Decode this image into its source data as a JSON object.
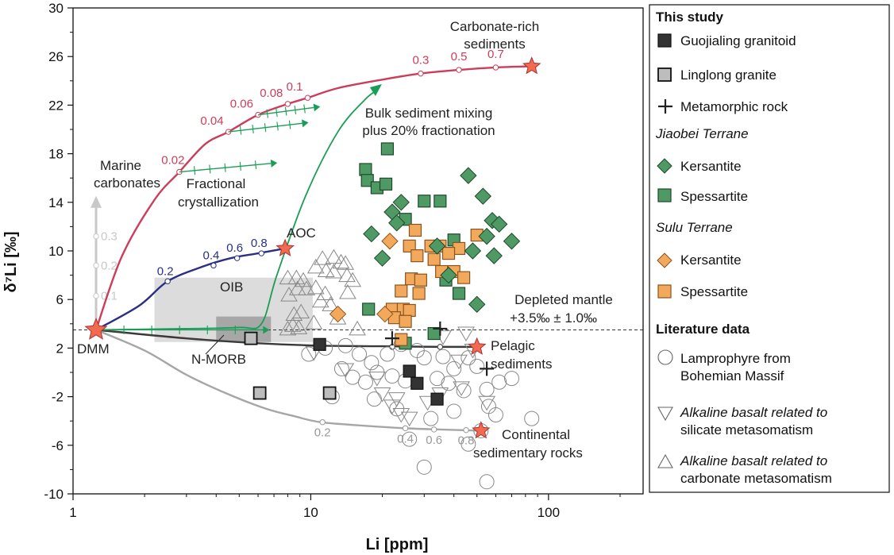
{
  "chart_data": {
    "type": "scatter",
    "x_scale": "log",
    "xlim": [
      1,
      250
    ],
    "ylim": [
      -10,
      30
    ],
    "xlabel": "Li [ppm]",
    "ylabel": "δ⁷Li [‰]",
    "x_ticks": [
      "1",
      "10",
      "100"
    ],
    "y_ticks": [
      "30",
      "26",
      "22",
      "18",
      "14",
      "10",
      "6",
      "2",
      "-2",
      "-6",
      "-10"
    ],
    "colors": {
      "guojialing": "#333333",
      "linglong": "#bdbdbd",
      "green": "#4f9a64",
      "orange": "#f3a95b",
      "lit": "#888888",
      "carb": "#cc3d5b",
      "aoc": "#2a2f83",
      "pel": "#3a3a3a",
      "cont": "#a6a6a6",
      "mix": "#1a9e55",
      "star": "#f26a4f"
    },
    "series": [
      {
        "name": "Guojialing granitoid",
        "marker": "square",
        "points": [
          [
            10.9,
            2.3
          ],
          [
            26,
            0.1
          ],
          [
            28,
            -0.9
          ],
          [
            34,
            -2.2
          ]
        ]
      },
      {
        "name": "Linglong granite",
        "marker": "square",
        "points": [
          [
            5.6,
            2.8
          ],
          [
            6.1,
            -1.7
          ],
          [
            12,
            -1.7
          ]
        ]
      },
      {
        "name": "Metamorphic rock",
        "marker": "plus",
        "points": [
          [
            22,
            2.8
          ],
          [
            35,
            3.6
          ],
          [
            55,
            0.3
          ]
        ]
      },
      {
        "name": "Jiaobei Terrane Kersantite",
        "marker": "diamond",
        "points": [
          [
            46,
            16.2
          ],
          [
            53,
            14.5
          ],
          [
            24,
            14
          ],
          [
            22,
            13.2
          ],
          [
            23,
            12.3
          ],
          [
            58,
            12.5
          ],
          [
            62,
            12.2
          ],
          [
            18,
            11.4
          ],
          [
            70,
            10.8
          ],
          [
            55,
            11.2
          ],
          [
            34,
            10.4
          ],
          [
            48,
            10
          ],
          [
            59,
            9.6
          ],
          [
            20,
            9.4
          ],
          [
            38,
            8
          ],
          [
            50,
            5.6
          ]
        ]
      },
      {
        "name": "Jiaobei Terrane Spessartite",
        "marker": "square",
        "points": [
          [
            21,
            18.4
          ],
          [
            17,
            16.7
          ],
          [
            17.3,
            15.8
          ],
          [
            19,
            15.2
          ],
          [
            20.7,
            15.5
          ],
          [
            30,
            14.1
          ],
          [
            35,
            14.1
          ],
          [
            25,
            12.6
          ],
          [
            40,
            10.9
          ],
          [
            37,
            7.6
          ],
          [
            42,
            6.5
          ],
          [
            17.5,
            5.2
          ],
          [
            33,
            3.2
          ],
          [
            25,
            2.4
          ]
        ]
      },
      {
        "name": "Sulu Terrane Kersantite",
        "marker": "diamond",
        "points": [
          [
            21.5,
            10.8
          ],
          [
            13,
            4.8
          ],
          [
            20.5,
            4.8
          ]
        ]
      },
      {
        "name": "Sulu Terrane Spessartite",
        "marker": "square",
        "points": [
          [
            27.5,
            11.7
          ],
          [
            26,
            10.4
          ],
          [
            32,
            10.4
          ],
          [
            42,
            10.2
          ],
          [
            50,
            11.3
          ],
          [
            28,
            9.6
          ],
          [
            35,
            10.4
          ],
          [
            33,
            9.3
          ],
          [
            38,
            9.8
          ],
          [
            26.5,
            7.7
          ],
          [
            29,
            7.6
          ],
          [
            35.5,
            8.3
          ],
          [
            40,
            8.3
          ],
          [
            44,
            7.8
          ],
          [
            24,
            6.7
          ],
          [
            28.5,
            6.5
          ],
          [
            22,
            5.2
          ],
          [
            24.5,
            5.2
          ],
          [
            26,
            5.1
          ],
          [
            22.5,
            4.5
          ],
          [
            25,
            4.2
          ],
          [
            24,
            2.7
          ]
        ]
      },
      {
        "name": "Lamprophyre from Bohemian Massif",
        "marker": "circle",
        "points": [
          [
            9.8,
            1.5
          ],
          [
            11.5,
            2
          ],
          [
            14,
            2.2
          ],
          [
            16,
            1.5
          ],
          [
            18,
            0.8
          ],
          [
            21,
            1.5
          ],
          [
            24,
            2.3
          ],
          [
            28,
            1.8
          ],
          [
            30,
            1.2
          ],
          [
            36,
            1.3
          ],
          [
            40,
            0.3
          ],
          [
            46,
            1.2
          ],
          [
            50,
            0.5
          ],
          [
            13.5,
            0.3
          ],
          [
            15,
            -0.4
          ],
          [
            17,
            -0.8
          ],
          [
            19,
            0
          ],
          [
            22,
            -0.3
          ],
          [
            25,
            -0.7
          ],
          [
            34,
            -0.5
          ],
          [
            38,
            -0.9
          ],
          [
            44,
            -1.5
          ],
          [
            55,
            -1.4
          ],
          [
            62,
            -0.8
          ],
          [
            70,
            -0.5
          ],
          [
            12.3,
            -2
          ],
          [
            18.5,
            -2.2
          ],
          [
            23,
            -3
          ],
          [
            32,
            -3.8
          ],
          [
            40,
            -3.2
          ],
          [
            56,
            -2.8
          ],
          [
            60,
            -3.5
          ],
          [
            85,
            -3.8
          ],
          [
            26,
            -5.5
          ],
          [
            30,
            -7.8
          ],
          [
            55,
            -9
          ],
          [
            46,
            -5.9
          ],
          [
            52,
            -4.8
          ]
        ]
      },
      {
        "name": "Alkaline basalt related to silicate metasomatism",
        "marker": "triangle-down",
        "points": [
          [
            10.3,
            1.6
          ],
          [
            14,
            0.2
          ],
          [
            19,
            -0.5
          ],
          [
            20,
            -1.8
          ],
          [
            23,
            -2.2
          ],
          [
            22,
            -2.8
          ],
          [
            24,
            -3.5
          ],
          [
            26,
            -3.8
          ],
          [
            31,
            -2.5
          ],
          [
            35,
            -1.8
          ],
          [
            43,
            -1.3
          ],
          [
            55,
            -2.5
          ],
          [
            36,
            2.9
          ],
          [
            45,
            3.2
          ],
          [
            48,
            1.8
          ],
          [
            42,
            0.9
          ]
        ]
      },
      {
        "name": "Alkaline basalt related to carbonate metasomatism",
        "marker": "triangle-up",
        "points": [
          [
            8,
            3.6
          ],
          [
            8.4,
            3.9
          ],
          [
            8.9,
            3.7
          ],
          [
            8.5,
            4.8
          ],
          [
            9.1,
            5
          ],
          [
            8.1,
            6.4
          ],
          [
            8.8,
            6.9
          ],
          [
            9.6,
            6.9
          ],
          [
            8,
            7.8
          ],
          [
            8.7,
            7.8
          ],
          [
            9.3,
            7.6
          ],
          [
            10.5,
            7
          ],
          [
            11.5,
            6.5
          ],
          [
            10.5,
            8.7
          ],
          [
            11.6,
            8.4
          ],
          [
            12.5,
            8.3
          ],
          [
            11.2,
            9.4
          ],
          [
            12.5,
            9.5
          ],
          [
            13.4,
            9.1
          ],
          [
            14.2,
            8
          ],
          [
            15,
            7.6
          ],
          [
            14.3,
            6.6
          ],
          [
            11,
            5.9
          ],
          [
            12.1,
            5.6
          ],
          [
            10.3,
            4.1
          ],
          [
            13,
            4.5
          ],
          [
            15.7,
            3.6
          ],
          [
            14,
            9
          ]
        ]
      }
    ],
    "stars": [
      {
        "name": "DMM",
        "x": 1.25,
        "y": 3.5
      },
      {
        "name": "AOC",
        "x": 7.8,
        "y": 10.2
      },
      {
        "name": "Carbonate-rich sediments",
        "x": 85,
        "y": 25.2
      },
      {
        "name": "Pelagic sediments",
        "x": 50,
        "y": 2.1
      },
      {
        "name": "Continental sedimentary rocks",
        "x": 52,
        "y": -4.8
      }
    ],
    "curves": {
      "carbonate_sediment": {
        "points": [
          [
            1.25,
            3.5
          ],
          [
            1.6,
            9.5
          ],
          [
            2.2,
            14.2
          ],
          [
            2.8,
            16.5
          ],
          [
            3.6,
            18.8
          ],
          [
            4.5,
            19.8
          ],
          [
            6,
            21.2
          ],
          [
            8,
            22.1
          ],
          [
            9.7,
            22.6
          ],
          [
            13,
            23.4
          ],
          [
            20,
            24.1
          ],
          [
            29,
            24.6
          ],
          [
            42,
            24.9
          ],
          [
            60,
            25.1
          ],
          [
            85,
            25.2
          ]
        ],
        "labels": [
          {
            "x": 2.8,
            "y": 16.5,
            "f": "0.02"
          },
          {
            "x": 4.5,
            "y": 19.8,
            "f": "0.04"
          },
          {
            "x": 6,
            "y": 21.2,
            "f": "0.06"
          },
          {
            "x": 8,
            "y": 22.1,
            "f": "0.08"
          },
          {
            "x": 9.7,
            "y": 22.6,
            "f": "0.1"
          },
          {
            "x": 29,
            "y": 24.6,
            "f": "0.3"
          },
          {
            "x": 42,
            "y": 24.9,
            "f": "0.5"
          },
          {
            "x": 60,
            "y": 25.1,
            "f": "0.7"
          }
        ]
      },
      "aoc": {
        "points": [
          [
            1.25,
            3.5
          ],
          [
            1.9,
            5.5
          ],
          [
            2.5,
            7.5
          ],
          [
            3.5,
            8.7
          ],
          [
            4.6,
            9.4
          ],
          [
            6,
            9.8
          ],
          [
            7.8,
            10.2
          ]
        ],
        "labels": [
          {
            "x": 2.5,
            "y": 7.5,
            "f": "0.2"
          },
          {
            "x": 3.9,
            "y": 8.8,
            "f": "0.4"
          },
          {
            "x": 4.9,
            "y": 9.4,
            "f": "0.6"
          },
          {
            "x": 6.2,
            "y": 9.8,
            "f": "0.8"
          }
        ]
      },
      "pelagic": {
        "points": [
          [
            1.25,
            3.5
          ],
          [
            3,
            2.8
          ],
          [
            6,
            2.4
          ],
          [
            11,
            2.2
          ],
          [
            20,
            2.15
          ],
          [
            35,
            2.1
          ],
          [
            50,
            2.1
          ]
        ],
        "labels": [
          {
            "x": 11.2,
            "y": 2.2
          },
          {
            "x": 22,
            "y": 2.1
          },
          {
            "x": 35,
            "y": 2.1
          }
        ]
      },
      "continental": {
        "points": [
          [
            1.25,
            3.5
          ],
          [
            2,
            1.8
          ],
          [
            3,
            -0.2
          ],
          [
            4.5,
            -1.8
          ],
          [
            6.5,
            -3
          ],
          [
            8.5,
            -3.6
          ],
          [
            11,
            -4.1
          ],
          [
            17,
            -4.4
          ],
          [
            25,
            -4.6
          ],
          [
            35,
            -4.7
          ],
          [
            52,
            -4.8
          ]
        ],
        "labels": [
          {
            "x": 11.2,
            "y": -4.1,
            "f": "0.2"
          },
          {
            "x": 25,
            "y": -4.6,
            "f": "0.4"
          },
          {
            "x": 33,
            "y": -4.7,
            "f": "0.6"
          },
          {
            "x": 45,
            "y": -4.75,
            "f": "0.8"
          }
        ]
      },
      "marine_carbonates": {
        "points": [
          [
            1.25,
            3.5
          ],
          [
            1.25,
            6.3
          ],
          [
            1.25,
            8.8
          ],
          [
            1.25,
            11.2
          ],
          [
            1.25,
            14.2
          ]
        ],
        "labels": [
          {
            "x": 1.25,
            "y": 6.3,
            "f": "0.1"
          },
          {
            "x": 1.25,
            "y": 8.8,
            "f": "0.2"
          },
          {
            "x": 1.25,
            "y": 11.2,
            "f": "0.3"
          }
        ]
      },
      "bulk_mixing": {
        "points": [
          [
            1.25,
            3.5
          ],
          [
            3,
            3.6
          ],
          [
            5,
            3.7
          ],
          [
            6.2,
            4
          ],
          [
            7.2,
            8
          ],
          [
            9.5,
            14.5
          ],
          [
            13,
            19.8
          ],
          [
            17,
            22.5
          ],
          [
            19,
            23.2
          ]
        ]
      },
      "fractionation_arrows": [
        [
          [
            1.25,
            3.5
          ],
          [
            6.3,
            3.5
          ]
        ],
        [
          [
            2.8,
            16.5
          ],
          [
            6.8,
            17.2
          ]
        ],
        [
          [
            4.5,
            19.8
          ],
          [
            9.2,
            20.5
          ]
        ],
        [
          [
            6,
            21.2
          ],
          [
            10.3,
            21.8
          ]
        ]
      ]
    },
    "regions": [
      {
        "name": "OIB",
        "x0": 2.2,
        "x1": 10.2,
        "y0": 2.5,
        "y1": 7.8
      },
      {
        "name": "N-MORB",
        "x0": 4,
        "x1": 6.8,
        "y0": 2.5,
        "y1": 4.6
      }
    ],
    "reference_line": {
      "y": 3.5,
      "label": "Depleted mantle +3.5‰ ± 1.0‰"
    },
    "annotations": {
      "carbonate_rich_1": "Carbonate-rich",
      "carbonate_rich_2": "sediments",
      "marine_1": "Marine",
      "marine_2": "carbonates",
      "fractional_1": "Fractional",
      "fractional_2": "crystallization",
      "bulk_1": "Bulk sediment mixing",
      "bulk_2": "plus 20% fractionation",
      "aoc": "AOC",
      "oib": "OIB",
      "nmorb": "N-MORB",
      "dmm": "DMM",
      "depleted_1": "Depleted mantle",
      "depleted_2": "+3.5‰ ± 1.0‰",
      "pelagic_1": "Pelagic",
      "pelagic_2": "sediments",
      "continental_1": "Continental",
      "continental_2": "sedimentary rocks"
    },
    "legend": {
      "this_study": "This study",
      "guojialing": "Guojialing granitoid",
      "linglong": "Linglong granite",
      "metamorphic": "Metamorphic rock",
      "jiaobei": "Jiaobei Terrane",
      "jb_kers": "Kersantite",
      "jb_spes": "Spessartite",
      "sulu": "Sulu Terrane",
      "sl_kers": "Kersantite",
      "sl_spes": "Spessartite",
      "literature": "Literature data",
      "lamp_1": "Lamprophyre from",
      "lamp_2": "Bohemian Massif",
      "sil_1": "Alkaline basalt related to",
      "sil_2": "silicate metasomatism",
      "carb_1": "Alkaline basalt related to",
      "carb_2": "carbonate metasomatism"
    }
  }
}
